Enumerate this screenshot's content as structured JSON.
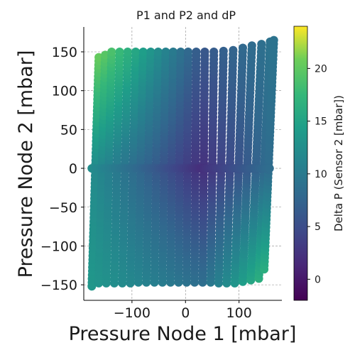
{
  "chart_data": {
    "type": "scatter",
    "title": "P1 and P2 and dP",
    "xlabel": "Pressure Node 1 [mbar]",
    "ylabel": "Pressure Node 2 [mbar]",
    "xlim": [
      -190,
      180
    ],
    "ylim": [
      -170,
      182
    ],
    "xticks": [
      -100,
      0,
      100
    ],
    "xtick_labels": [
      "−100",
      "0",
      "100"
    ],
    "yticks": [
      -150,
      -100,
      -50,
      0,
      50,
      100,
      150
    ],
    "ytick_labels": [
      "−150",
      "−100",
      "−50",
      "0",
      "50",
      "100",
      "150"
    ],
    "grid": true,
    "colormap": "viridis",
    "colorbar": {
      "label": "Delta P (Sensor 2 [mbar])",
      "range": [
        -2,
        24
      ],
      "ticks": [
        0,
        5,
        10,
        15,
        20
      ],
      "tick_labels": [
        "0",
        "5",
        "10",
        "15",
        "20"
      ]
    },
    "sweep_lines": [
      {
        "x_at_min": -175,
        "x_at_max": -162,
        "y_min": -152,
        "y_max": 143
      },
      {
        "x_at_min": -162,
        "x_at_max": -150,
        "y_min": -148,
        "y_max": 146
      },
      {
        "x_at_min": -148,
        "x_at_max": -138,
        "y_min": -148,
        "y_max": 150
      },
      {
        "x_at_min": -133,
        "x_at_max": -123,
        "y_min": -148,
        "y_max": 150
      },
      {
        "x_at_min": -118,
        "x_at_max": -108,
        "y_min": -148,
        "y_max": 150
      },
      {
        "x_at_min": -103,
        "x_at_max": -93,
        "y_min": -148,
        "y_max": 150
      },
      {
        "x_at_min": -88,
        "x_at_max": -79,
        "y_min": -147,
        "y_max": 150
      },
      {
        "x_at_min": -73,
        "x_at_max": -65,
        "y_min": -147,
        "y_max": 150
      },
      {
        "x_at_min": -58,
        "x_at_max": -51,
        "y_min": -147,
        "y_max": 150
      },
      {
        "x_at_min": -43,
        "x_at_max": -37,
        "y_min": -147,
        "y_max": 150
      },
      {
        "x_at_min": -28,
        "x_at_max": -23,
        "y_min": -147,
        "y_max": 150
      },
      {
        "x_at_min": -13,
        "x_at_max": -9,
        "y_min": -147,
        "y_max": 150
      },
      {
        "x_at_min": 2,
        "x_at_max": 5,
        "y_min": -147,
        "y_max": 150
      },
      {
        "x_at_min": 17,
        "x_at_max": 20,
        "y_min": -147,
        "y_max": 150
      },
      {
        "x_at_min": 32,
        "x_at_max": 36,
        "y_min": -147,
        "y_max": 150
      },
      {
        "x_at_min": 47,
        "x_at_max": 53,
        "y_min": -147,
        "y_max": 150
      },
      {
        "x_at_min": 62,
        "x_at_max": 71,
        "y_min": -148,
        "y_max": 151
      },
      {
        "x_at_min": 77,
        "x_at_max": 89,
        "y_min": -148,
        "y_max": 152
      },
      {
        "x_at_min": 92,
        "x_at_max": 107,
        "y_min": -148,
        "y_max": 155
      },
      {
        "x_at_min": 107,
        "x_at_max": 124,
        "y_min": -146,
        "y_max": 158
      },
      {
        "x_at_min": 122,
        "x_at_max": 142,
        "y_min": -144,
        "y_max": 160
      },
      {
        "x_at_min": 137,
        "x_at_max": 158,
        "y_min": -142,
        "y_max": 163
      },
      {
        "x_at_min": 147,
        "x_at_max": 165,
        "y_min": -130,
        "y_max": 165
      }
    ],
    "zero_row": {
      "y": 0,
      "x_min": -175,
      "x_max": 160
    }
  }
}
